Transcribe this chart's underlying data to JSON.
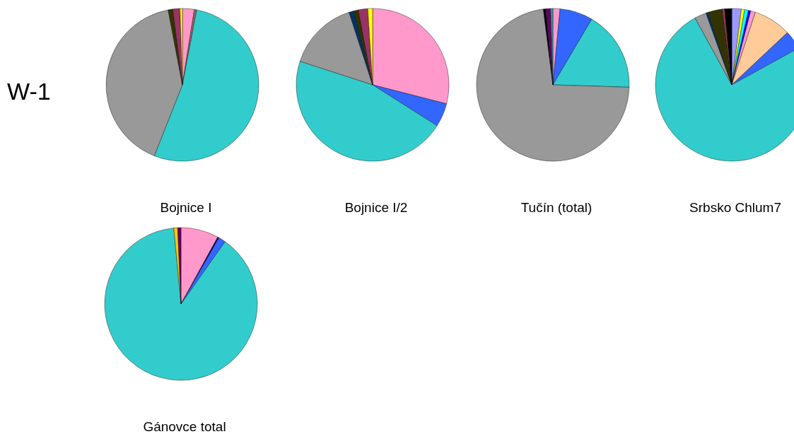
{
  "chart_data": [
    {
      "type": "pie",
      "title": "Bojnice I",
      "annotations": [
        "W-1"
      ],
      "categories": [
        null,
        null,
        null,
        null,
        null,
        null,
        null
      ],
      "values": [
        2.5,
        0.5,
        53,
        41,
        1,
        1.5,
        0.5
      ],
      "colors": [
        "#ff99cc",
        "#996666",
        "#33cccc",
        "#999999",
        "#333300",
        "#993366",
        "#ffff00"
      ]
    },
    {
      "type": "pie",
      "title": "Bojnice I/2",
      "categories": [
        null,
        null,
        null,
        null,
        null,
        null,
        null,
        null
      ],
      "values": [
        29,
        5,
        46,
        15,
        1,
        1,
        2,
        1
      ],
      "colors": [
        "#ff99cc",
        "#3366ff",
        "#33cccc",
        "#999999",
        "#003366",
        "#333300",
        "#993366",
        "#ffff00"
      ]
    },
    {
      "type": "pie",
      "title": "Tučín (total)",
      "categories": [
        null,
        null,
        null,
        null,
        null,
        null,
        null
      ],
      "values": [
        1.5,
        7,
        17,
        72.5,
        0.5,
        1,
        0.5
      ],
      "colors": [
        "#ff99cc",
        "#3366ff",
        "#33cccc",
        "#999999",
        "#000000",
        "#660066",
        "#339999"
      ]
    },
    {
      "type": "pie",
      "title": "Srbsko Chlum7",
      "categories": [
        null,
        null,
        null,
        null,
        null,
        null,
        null,
        null,
        null,
        null,
        null,
        null,
        null
      ],
      "values": [
        2,
        0.7,
        0.8,
        0.5,
        1,
        8,
        4,
        75,
        2.5,
        0.5,
        3,
        0.5,
        1.5
      ],
      "colors": [
        "#9999ff",
        "#ffff00",
        "#00ffff",
        "#0000ff",
        "#ff99cc",
        "#ffcc99",
        "#3366ff",
        "#33cccc",
        "#999999",
        "#003366",
        "#333300",
        "#993366",
        "#000000"
      ]
    },
    {
      "type": "pie",
      "title": "Gánovce total",
      "categories": [
        null,
        null,
        null,
        null,
        null,
        null
      ],
      "values": [
        8,
        0.3,
        1.5,
        88.7,
        0.8,
        0.7
      ],
      "colors": [
        "#ff99cc",
        "#000080",
        "#3366ff",
        "#33cccc",
        "#ffcc00",
        "#660066"
      ]
    }
  ]
}
